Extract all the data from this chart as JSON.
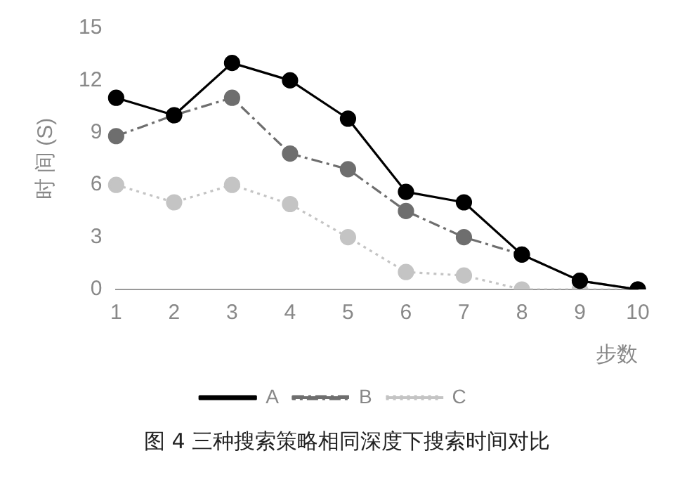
{
  "chart_data": {
    "type": "line",
    "title": "图 4  三种搜索策略相同深度下搜索时间对比",
    "xlabel": "步数",
    "ylabel": "时 间 (S)",
    "categories": [
      "1",
      "2",
      "3",
      "4",
      "5",
      "6",
      "7",
      "8",
      "9",
      "10"
    ],
    "series": [
      {
        "name": "A",
        "color": "#000000",
        "line_style": "solid",
        "values": [
          11,
          10,
          13,
          12,
          9.8,
          5.6,
          5,
          2,
          0.5,
          0
        ]
      },
      {
        "name": "B",
        "color": "#6e6e6e",
        "line_style": "dashdot",
        "values": [
          8.8,
          10,
          11,
          7.8,
          6.9,
          4.5,
          3,
          2,
          0.5,
          0
        ]
      },
      {
        "name": "C",
        "color": "#c4c4c4",
        "line_style": "dotted",
        "values": [
          6,
          5,
          6,
          4.9,
          3,
          1,
          0.8,
          0,
          0,
          0
        ]
      }
    ],
    "ylim": [
      0,
      15
    ],
    "yticks": [
      0,
      3,
      6,
      9,
      12,
      15
    ],
    "grid": false,
    "legend": "bottom",
    "marker": "circle"
  }
}
